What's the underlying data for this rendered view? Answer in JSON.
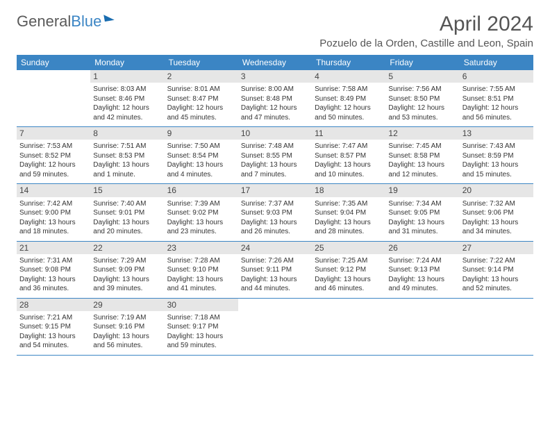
{
  "logo": {
    "textPart1": "General",
    "textPart2": "Blue"
  },
  "title": "April 2024",
  "location": "Pozuelo de la Orden, Castille and Leon, Spain",
  "weekdays": [
    "Sunday",
    "Monday",
    "Tuesday",
    "Wednesday",
    "Thursday",
    "Friday",
    "Saturday"
  ],
  "colors": {
    "headerBar": "#3b85c4",
    "dayNumberBg": "#e6e6e6",
    "rowDivider": "#3b85c4",
    "background": "#ffffff",
    "logoGray": "#5a5a5a",
    "logoBlue": "#3b85c4"
  },
  "weeks": [
    [
      null,
      {
        "n": "1",
        "sunrise": "8:03 AM",
        "sunset": "8:46 PM",
        "daylight": "12 hours and 42 minutes."
      },
      {
        "n": "2",
        "sunrise": "8:01 AM",
        "sunset": "8:47 PM",
        "daylight": "12 hours and 45 minutes."
      },
      {
        "n": "3",
        "sunrise": "8:00 AM",
        "sunset": "8:48 PM",
        "daylight": "12 hours and 47 minutes."
      },
      {
        "n": "4",
        "sunrise": "7:58 AM",
        "sunset": "8:49 PM",
        "daylight": "12 hours and 50 minutes."
      },
      {
        "n": "5",
        "sunrise": "7:56 AM",
        "sunset": "8:50 PM",
        "daylight": "12 hours and 53 minutes."
      },
      {
        "n": "6",
        "sunrise": "7:55 AM",
        "sunset": "8:51 PM",
        "daylight": "12 hours and 56 minutes."
      }
    ],
    [
      {
        "n": "7",
        "sunrise": "7:53 AM",
        "sunset": "8:52 PM",
        "daylight": "12 hours and 59 minutes."
      },
      {
        "n": "8",
        "sunrise": "7:51 AM",
        "sunset": "8:53 PM",
        "daylight": "13 hours and 1 minute."
      },
      {
        "n": "9",
        "sunrise": "7:50 AM",
        "sunset": "8:54 PM",
        "daylight": "13 hours and 4 minutes."
      },
      {
        "n": "10",
        "sunrise": "7:48 AM",
        "sunset": "8:55 PM",
        "daylight": "13 hours and 7 minutes."
      },
      {
        "n": "11",
        "sunrise": "7:47 AM",
        "sunset": "8:57 PM",
        "daylight": "13 hours and 10 minutes."
      },
      {
        "n": "12",
        "sunrise": "7:45 AM",
        "sunset": "8:58 PM",
        "daylight": "13 hours and 12 minutes."
      },
      {
        "n": "13",
        "sunrise": "7:43 AM",
        "sunset": "8:59 PM",
        "daylight": "13 hours and 15 minutes."
      }
    ],
    [
      {
        "n": "14",
        "sunrise": "7:42 AM",
        "sunset": "9:00 PM",
        "daylight": "13 hours and 18 minutes."
      },
      {
        "n": "15",
        "sunrise": "7:40 AM",
        "sunset": "9:01 PM",
        "daylight": "13 hours and 20 minutes."
      },
      {
        "n": "16",
        "sunrise": "7:39 AM",
        "sunset": "9:02 PM",
        "daylight": "13 hours and 23 minutes."
      },
      {
        "n": "17",
        "sunrise": "7:37 AM",
        "sunset": "9:03 PM",
        "daylight": "13 hours and 26 minutes."
      },
      {
        "n": "18",
        "sunrise": "7:35 AM",
        "sunset": "9:04 PM",
        "daylight": "13 hours and 28 minutes."
      },
      {
        "n": "19",
        "sunrise": "7:34 AM",
        "sunset": "9:05 PM",
        "daylight": "13 hours and 31 minutes."
      },
      {
        "n": "20",
        "sunrise": "7:32 AM",
        "sunset": "9:06 PM",
        "daylight": "13 hours and 34 minutes."
      }
    ],
    [
      {
        "n": "21",
        "sunrise": "7:31 AM",
        "sunset": "9:08 PM",
        "daylight": "13 hours and 36 minutes."
      },
      {
        "n": "22",
        "sunrise": "7:29 AM",
        "sunset": "9:09 PM",
        "daylight": "13 hours and 39 minutes."
      },
      {
        "n": "23",
        "sunrise": "7:28 AM",
        "sunset": "9:10 PM",
        "daylight": "13 hours and 41 minutes."
      },
      {
        "n": "24",
        "sunrise": "7:26 AM",
        "sunset": "9:11 PM",
        "daylight": "13 hours and 44 minutes."
      },
      {
        "n": "25",
        "sunrise": "7:25 AM",
        "sunset": "9:12 PM",
        "daylight": "13 hours and 46 minutes."
      },
      {
        "n": "26",
        "sunrise": "7:24 AM",
        "sunset": "9:13 PM",
        "daylight": "13 hours and 49 minutes."
      },
      {
        "n": "27",
        "sunrise": "7:22 AM",
        "sunset": "9:14 PM",
        "daylight": "13 hours and 52 minutes."
      }
    ],
    [
      {
        "n": "28",
        "sunrise": "7:21 AM",
        "sunset": "9:15 PM",
        "daylight": "13 hours and 54 minutes."
      },
      {
        "n": "29",
        "sunrise": "7:19 AM",
        "sunset": "9:16 PM",
        "daylight": "13 hours and 56 minutes."
      },
      {
        "n": "30",
        "sunrise": "7:18 AM",
        "sunset": "9:17 PM",
        "daylight": "13 hours and 59 minutes."
      },
      null,
      null,
      null,
      null
    ]
  ],
  "labels": {
    "sunrise": "Sunrise: ",
    "sunset": "Sunset: ",
    "daylight": "Daylight: "
  }
}
